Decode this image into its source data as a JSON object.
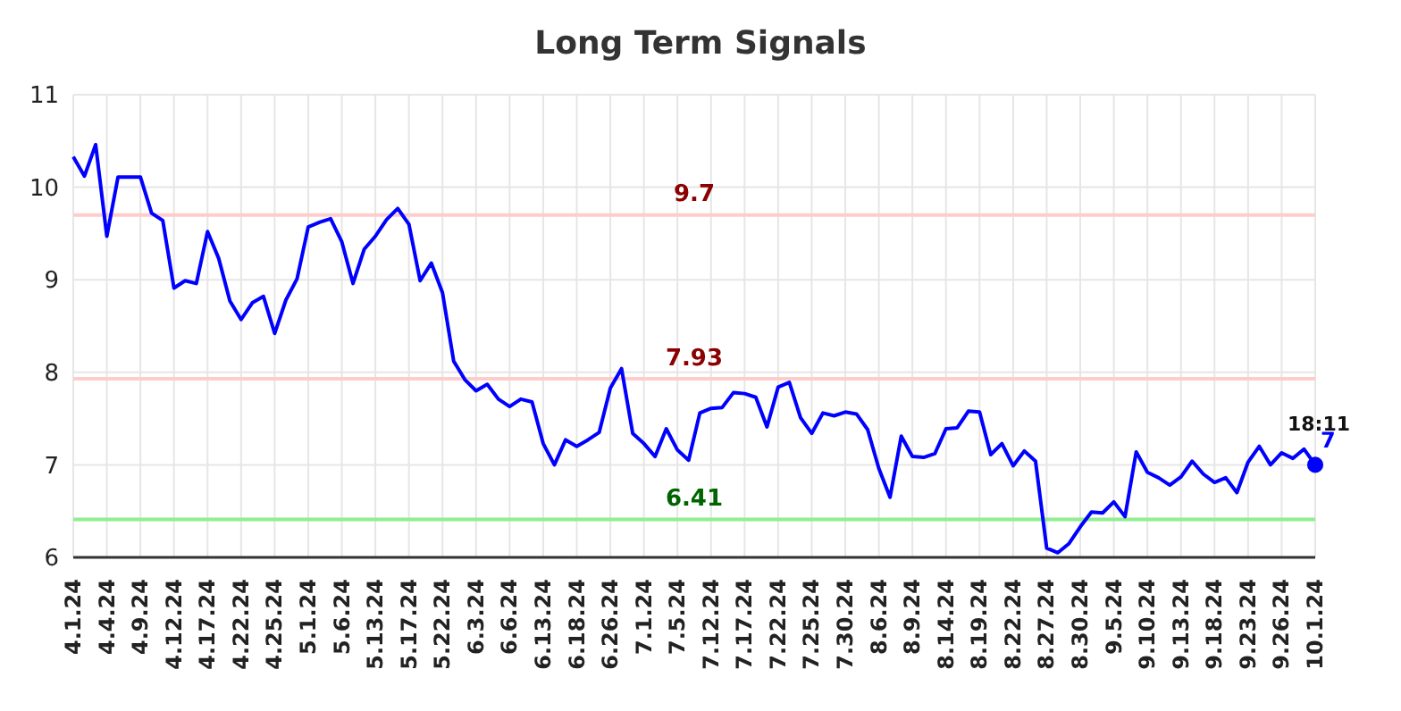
{
  "chart_data": {
    "type": "line",
    "title": "Long Term Signals",
    "categories": [
      "4.1.24",
      null,
      null,
      "4.4.24",
      null,
      null,
      "4.9.24",
      null,
      null,
      "4.12.24",
      null,
      null,
      "4.17.24",
      null,
      null,
      "4.22.24",
      null,
      null,
      "4.25.24",
      null,
      null,
      "5.1.24",
      null,
      null,
      "5.6.24",
      null,
      null,
      "5.13.24",
      null,
      null,
      "5.17.24",
      null,
      null,
      "5.22.24",
      null,
      null,
      "6.3.24",
      null,
      null,
      "6.6.24",
      null,
      null,
      "6.13.24",
      null,
      null,
      "6.18.24",
      null,
      null,
      "6.26.24",
      null,
      null,
      "7.1.24",
      null,
      null,
      "7.5.24",
      null,
      null,
      "7.12.24",
      null,
      null,
      "7.17.24",
      null,
      null,
      "7.22.24",
      null,
      null,
      "7.25.24",
      null,
      null,
      "7.30.24",
      null,
      null,
      "8.6.24",
      null,
      null,
      "8.9.24",
      null,
      null,
      "8.14.24",
      null,
      null,
      "8.19.24",
      null,
      null,
      "8.22.24",
      null,
      null,
      "8.27.24",
      null,
      null,
      "8.30.24",
      null,
      null,
      "9.5.24",
      null,
      null,
      "9.10.24",
      null,
      null,
      "9.13.24",
      null,
      null,
      "9.18.24",
      null,
      null,
      "9.23.24",
      null,
      null,
      "9.26.24",
      null,
      null,
      "10.1.24"
    ],
    "series": [
      {
        "color": "#0000ff",
        "values": [
          10.33,
          10.12,
          10.46,
          9.47,
          10.11,
          10.11,
          10.11,
          9.72,
          9.64,
          8.91,
          8.99,
          8.96,
          9.52,
          9.23,
          8.77,
          8.57,
          8.75,
          8.82,
          8.42,
          8.78,
          9.01,
          9.57,
          9.62,
          9.66,
          9.41,
          8.96,
          9.33,
          9.47,
          9.65,
          9.77,
          9.6,
          8.99,
          9.18,
          8.86,
          8.12,
          7.92,
          7.8,
          7.87,
          7.71,
          7.63,
          7.71,
          7.68,
          7.23,
          7.0,
          7.27,
          7.2,
          7.27,
          7.35,
          7.83,
          8.04,
          7.34,
          7.23,
          7.09,
          7.39,
          7.16,
          7.05,
          7.56,
          7.61,
          7.62,
          7.78,
          7.77,
          7.73,
          7.41,
          7.84,
          7.89,
          7.51,
          7.34,
          7.56,
          7.53,
          7.57,
          7.55,
          7.38,
          6.96,
          6.65,
          7.31,
          7.09,
          7.08,
          7.12,
          7.39,
          7.4,
          7.58,
          7.57,
          7.11,
          7.23,
          6.99,
          7.15,
          7.04,
          6.1,
          6.05,
          6.15,
          6.33,
          6.49,
          6.48,
          6.6,
          6.44,
          7.14,
          6.92,
          6.86,
          6.78,
          6.87,
          7.04,
          6.9,
          6.81,
          6.86,
          6.7,
          7.03,
          7.2,
          7.0,
          7.13,
          7.07,
          7.17,
          7.0
        ]
      },
      {
        "type": "scatter",
        "color": "#0000ff",
        "marker": "circle",
        "x": [
          "10.1.24"
        ],
        "values": [
          7.0
        ],
        "value_labels": [
          "7"
        ]
      }
    ],
    "ylim": [
      6,
      11
    ],
    "yticks": [
      6,
      7,
      8,
      9,
      10,
      11
    ],
    "grid": true,
    "line_style": "solid",
    "ref_lines": [
      {
        "axis": "y",
        "value": 9.7,
        "label": "9.7",
        "color": "#ffcccc"
      },
      {
        "axis": "y",
        "value": 7.93,
        "label": "7.93",
        "color": "#ffcccc"
      },
      {
        "axis": "y",
        "value": 6.41,
        "label": "6.41",
        "color": "#90ee90"
      }
    ],
    "annotations": [
      {
        "text": "18:11",
        "x": "10.1.24",
        "y": 7.0
      }
    ]
  }
}
